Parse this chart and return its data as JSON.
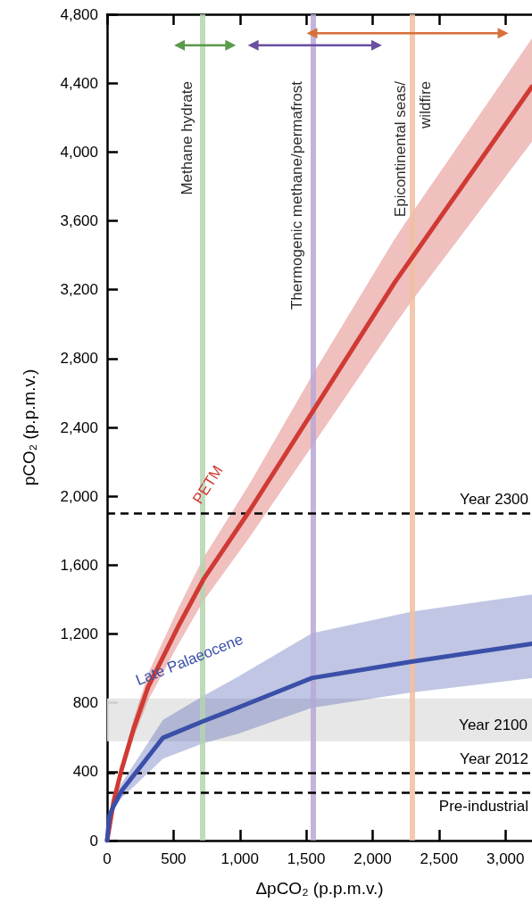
{
  "chart_data": {
    "type": "line",
    "xlabel": "ΔpCO₂ (p.p.m.v.)",
    "ylabel": "pCO₂ (p.p.m.v.)",
    "xlim": [
      0,
      3200
    ],
    "ylim": [
      0,
      4800
    ],
    "xticks": [
      0,
      500,
      {
        "value": 1000,
        "label": "1,000"
      },
      {
        "value": 1500,
        "label": "1,500"
      },
      {
        "value": 2000,
        "label": "2,000"
      },
      {
        "value": 2500,
        "label": "2,500"
      },
      {
        "value": 3000,
        "label": "3,000"
      }
    ],
    "yticks": [
      0,
      400,
      800,
      {
        "value": 1200,
        "label": "1,200"
      },
      {
        "value": 1600,
        "label": "1,600"
      },
      {
        "value": 2000,
        "label": "2,000"
      },
      {
        "value": 2400,
        "label": "2,400"
      },
      {
        "value": 2800,
        "label": "2,800"
      },
      {
        "value": 3200,
        "label": "3,200"
      },
      {
        "value": 3600,
        "label": "3,600"
      },
      {
        "value": 4000,
        "label": "4,000"
      },
      {
        "value": 4400,
        "label": "4,400"
      },
      {
        "value": 4800,
        "label": "4,800"
      }
    ],
    "grid": false,
    "marker": "none",
    "line_style": "solid",
    "series": [
      {
        "name": "PETM",
        "color": "#d03a34",
        "x": [
          0,
          50,
          107,
          200,
          309,
          533,
          724,
          1071,
          1542,
          2170,
          2300,
          3200
        ],
        "values": [
          0,
          230,
          407,
          650,
          892,
          1240,
          1515,
          1914,
          2485,
          3247,
          3390,
          4380
        ],
        "upper": [
          0,
          245,
          440,
          705,
          970,
          1345,
          1640,
          2070,
          2700,
          3500,
          3650,
          4660
        ],
        "lower": [
          0,
          215,
          375,
          600,
          815,
          1135,
          1390,
          1760,
          2290,
          3000,
          3140,
          4060
        ]
      },
      {
        "name": "Late Palaeocene",
        "color": "#3a4fa8",
        "x": [
          0,
          18,
          49,
          107,
          421,
          724,
          982,
          1542,
          2293,
          3200
        ],
        "values": [
          0,
          147,
          201,
          286,
          597,
          693,
          771,
          944,
          1039,
          1143
        ],
        "upper": [
          0,
          160,
          225,
          330,
          701,
          840,
          950,
          1204,
          1330,
          1430
        ],
        "lower": [
          0,
          135,
          180,
          245,
          476,
          565,
          620,
          771,
          860,
          944
        ]
      },
      {
        "color": "#5a9a4a",
        "marker": "triangle",
        "x": [
          545,
          930
        ],
        "values": [
          4620,
          4620
        ]
      },
      {
        "color": "#6a4fa0",
        "marker": "triangle",
        "x": [
          1100,
          2030
        ],
        "values": [
          4620,
          4620
        ]
      },
      {
        "color": "#d7703a",
        "marker": "triangle",
        "x": [
          1543,
          2982
        ],
        "values": [
          4690,
          4690
        ]
      }
    ],
    "ref_lines": [
      {
        "axis": "x",
        "value": 720,
        "label": "Methane hydrate",
        "color": "#b5d3b0",
        "line_style": "solid"
      },
      {
        "axis": "x",
        "value": 1550,
        "label": "Thermogenic methane/permafrost",
        "color": "#b9a7d6",
        "line_style": "solid"
      },
      {
        "axis": "x",
        "value": 2300,
        "label": "Epicontinental seas/\nwildfire",
        "color": "#f0c0a2",
        "line_style": "solid"
      },
      {
        "axis": "y",
        "value": 1900,
        "label": "Year 2300",
        "color": "#000000",
        "line_style": "dashed"
      },
      {
        "axis": "y",
        "value": 393,
        "label": "Year 2012",
        "color": "#000000",
        "line_style": "dashed"
      },
      {
        "axis": "y",
        "value": 280,
        "label": "Pre-industrial",
        "color": "#000000",
        "line_style": "dashed"
      }
    ],
    "bands": [
      {
        "axis": "y",
        "from": 577,
        "to": 826,
        "label": "Year 2100",
        "color": "#e4e4e4"
      }
    ]
  }
}
